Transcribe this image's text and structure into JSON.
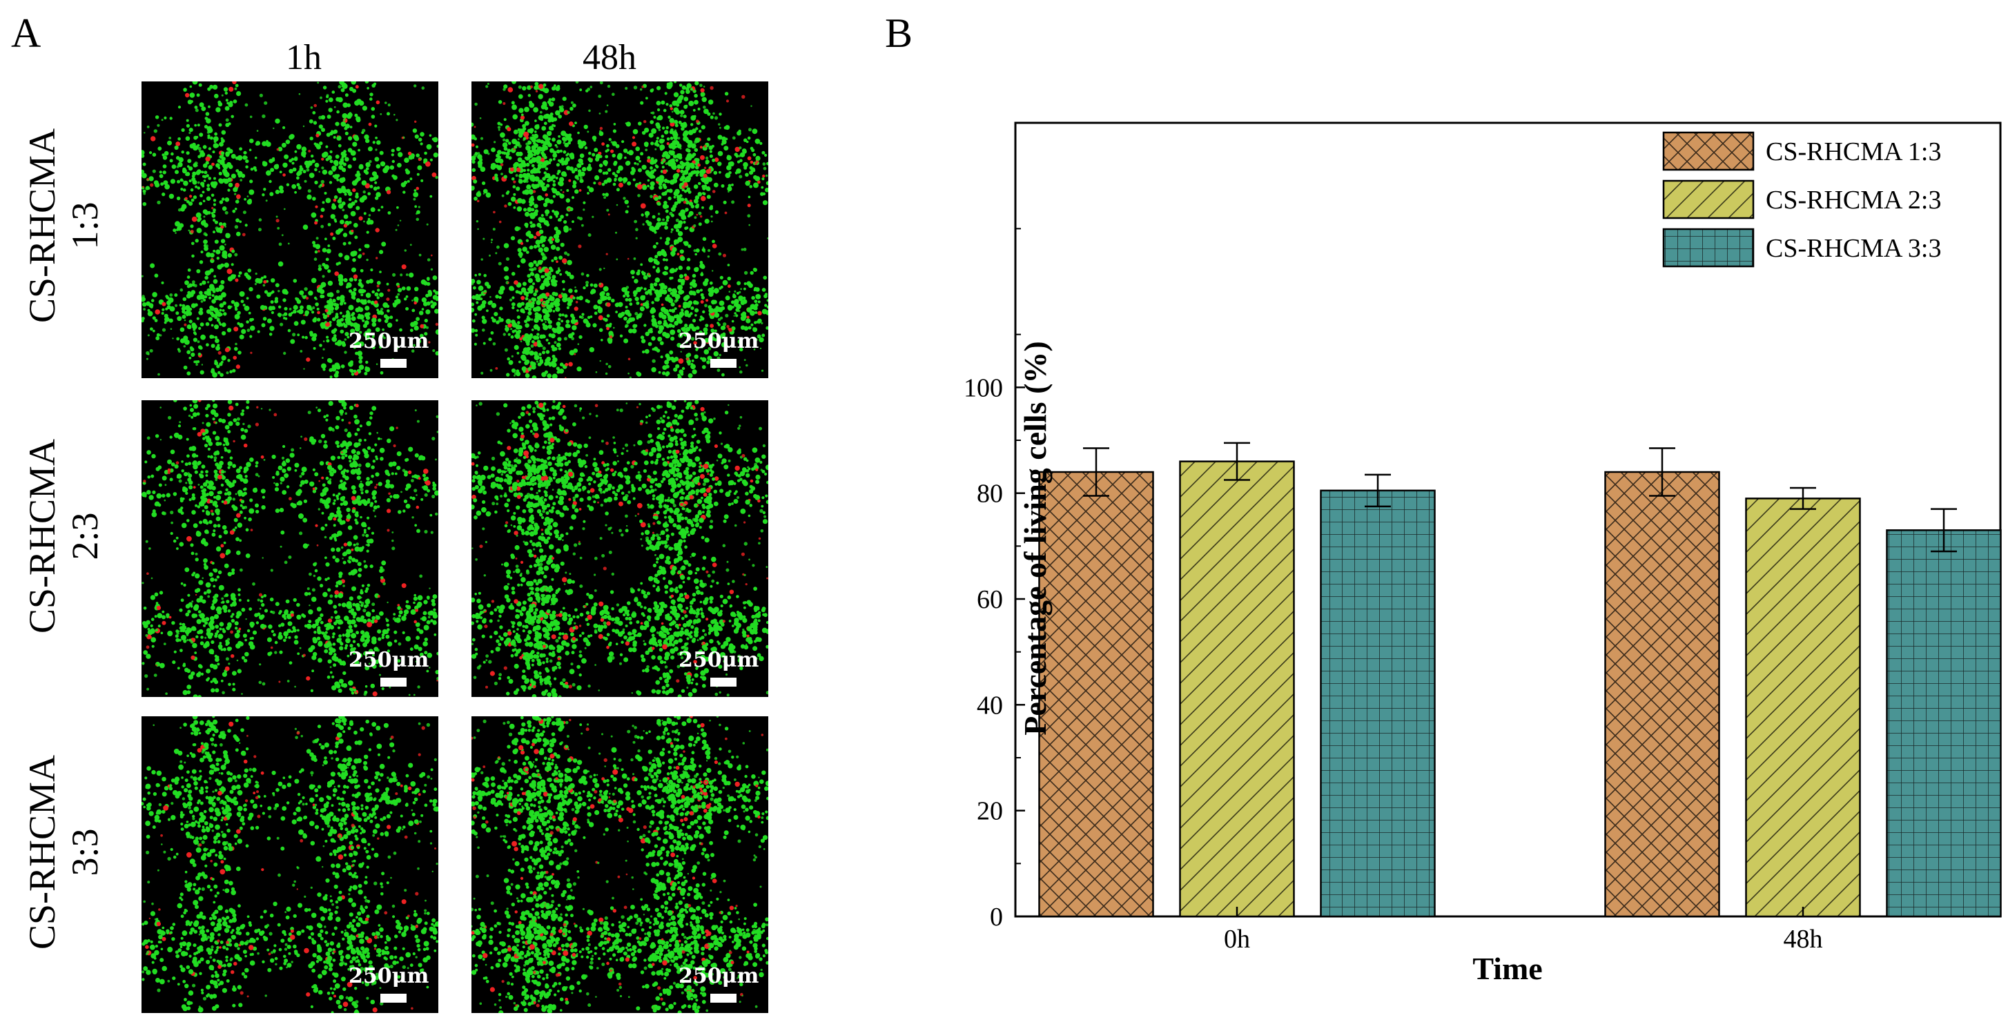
{
  "panel_a": {
    "letter": "A",
    "columns": [
      "1h",
      "48h"
    ],
    "rows": [
      {
        "line1": "CS-RHCMA",
        "line2": "1:3"
      },
      {
        "line1": "CS-RHCMA",
        "line2": "2:3"
      },
      {
        "line1": "CS-RHCMA",
        "line2": "3:3"
      }
    ],
    "scale_label": "250μm",
    "colors": {
      "live": "#22dd22",
      "dead": "#ee2222",
      "background": "#000000"
    }
  },
  "panel_b": {
    "letter": "B"
  },
  "chart_data": {
    "type": "bar",
    "title": "",
    "xlabel": "Time",
    "ylabel": "Percentage of living cells (%)",
    "categories": [
      "0h",
      "48h"
    ],
    "ylim": [
      0,
      150
    ],
    "yticks": [
      0,
      20,
      40,
      60,
      80,
      100
    ],
    "grid": false,
    "legend_position": "top-right",
    "series": [
      {
        "name": "CS-RHCMA 1:3",
        "values": [
          84,
          84
        ],
        "errors": [
          4.5,
          4.5
        ],
        "color": "#d1965e",
        "pattern": "crosshatch"
      },
      {
        "name": "CS-RHCMA 2:3",
        "values": [
          86,
          79
        ],
        "errors": [
          3.5,
          2
        ],
        "color": "#cbc95f",
        "pattern": "diagonal"
      },
      {
        "name": "CS-RHCMA 3:3",
        "values": [
          80.5,
          73
        ],
        "errors": [
          3,
          4
        ],
        "color": "#4a9494",
        "pattern": "grid"
      }
    ]
  }
}
